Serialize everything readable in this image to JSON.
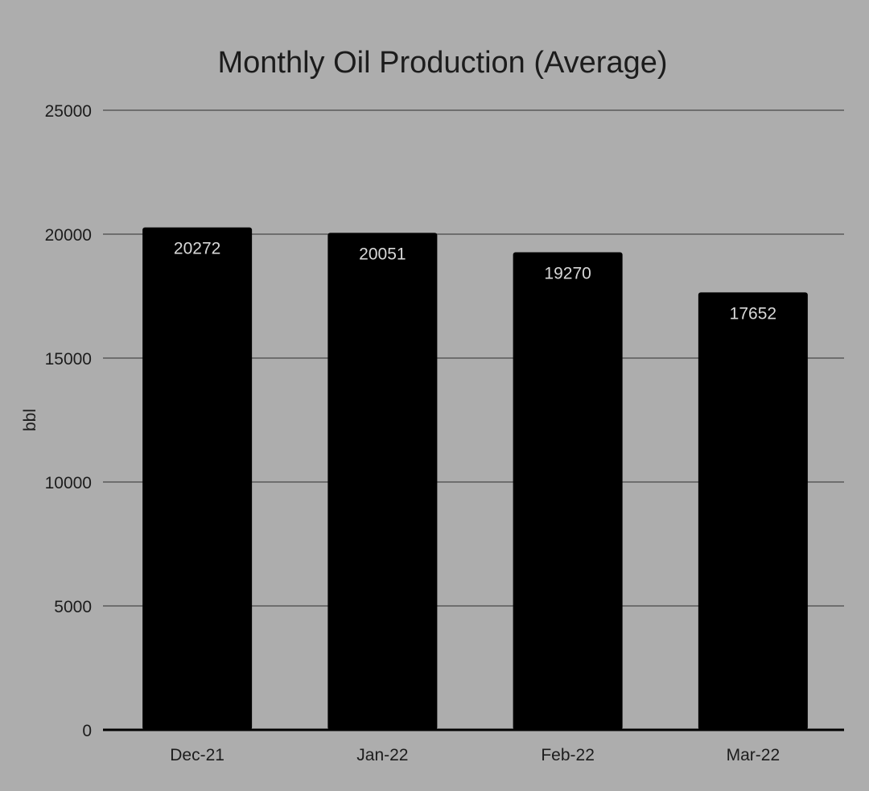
{
  "chart_data": {
    "type": "bar",
    "title": "Monthly Oil Production (Average)",
    "xlabel": "",
    "ylabel": "bbl",
    "categories": [
      "Dec-21",
      "Jan-22",
      "Feb-22",
      "Mar-22"
    ],
    "values": [
      20272,
      20051,
      19270,
      17652
    ],
    "data_labels": [
      "20272",
      "20051",
      "19270",
      "17652"
    ],
    "y_ticks": [
      0,
      5000,
      10000,
      15000,
      20000,
      25000
    ],
    "y_tick_labels": [
      "0",
      "5000",
      "10000",
      "15000",
      "20000",
      "25000"
    ],
    "ylim": [
      0,
      25000
    ],
    "grid": true,
    "legend": "none",
    "colors": {
      "background": "#adadad",
      "bar": "#000000",
      "gridline": "#6e6e6e",
      "baseline": "#000000",
      "text": "#1c1c1c",
      "bar_label": "#d8d8d8"
    }
  }
}
